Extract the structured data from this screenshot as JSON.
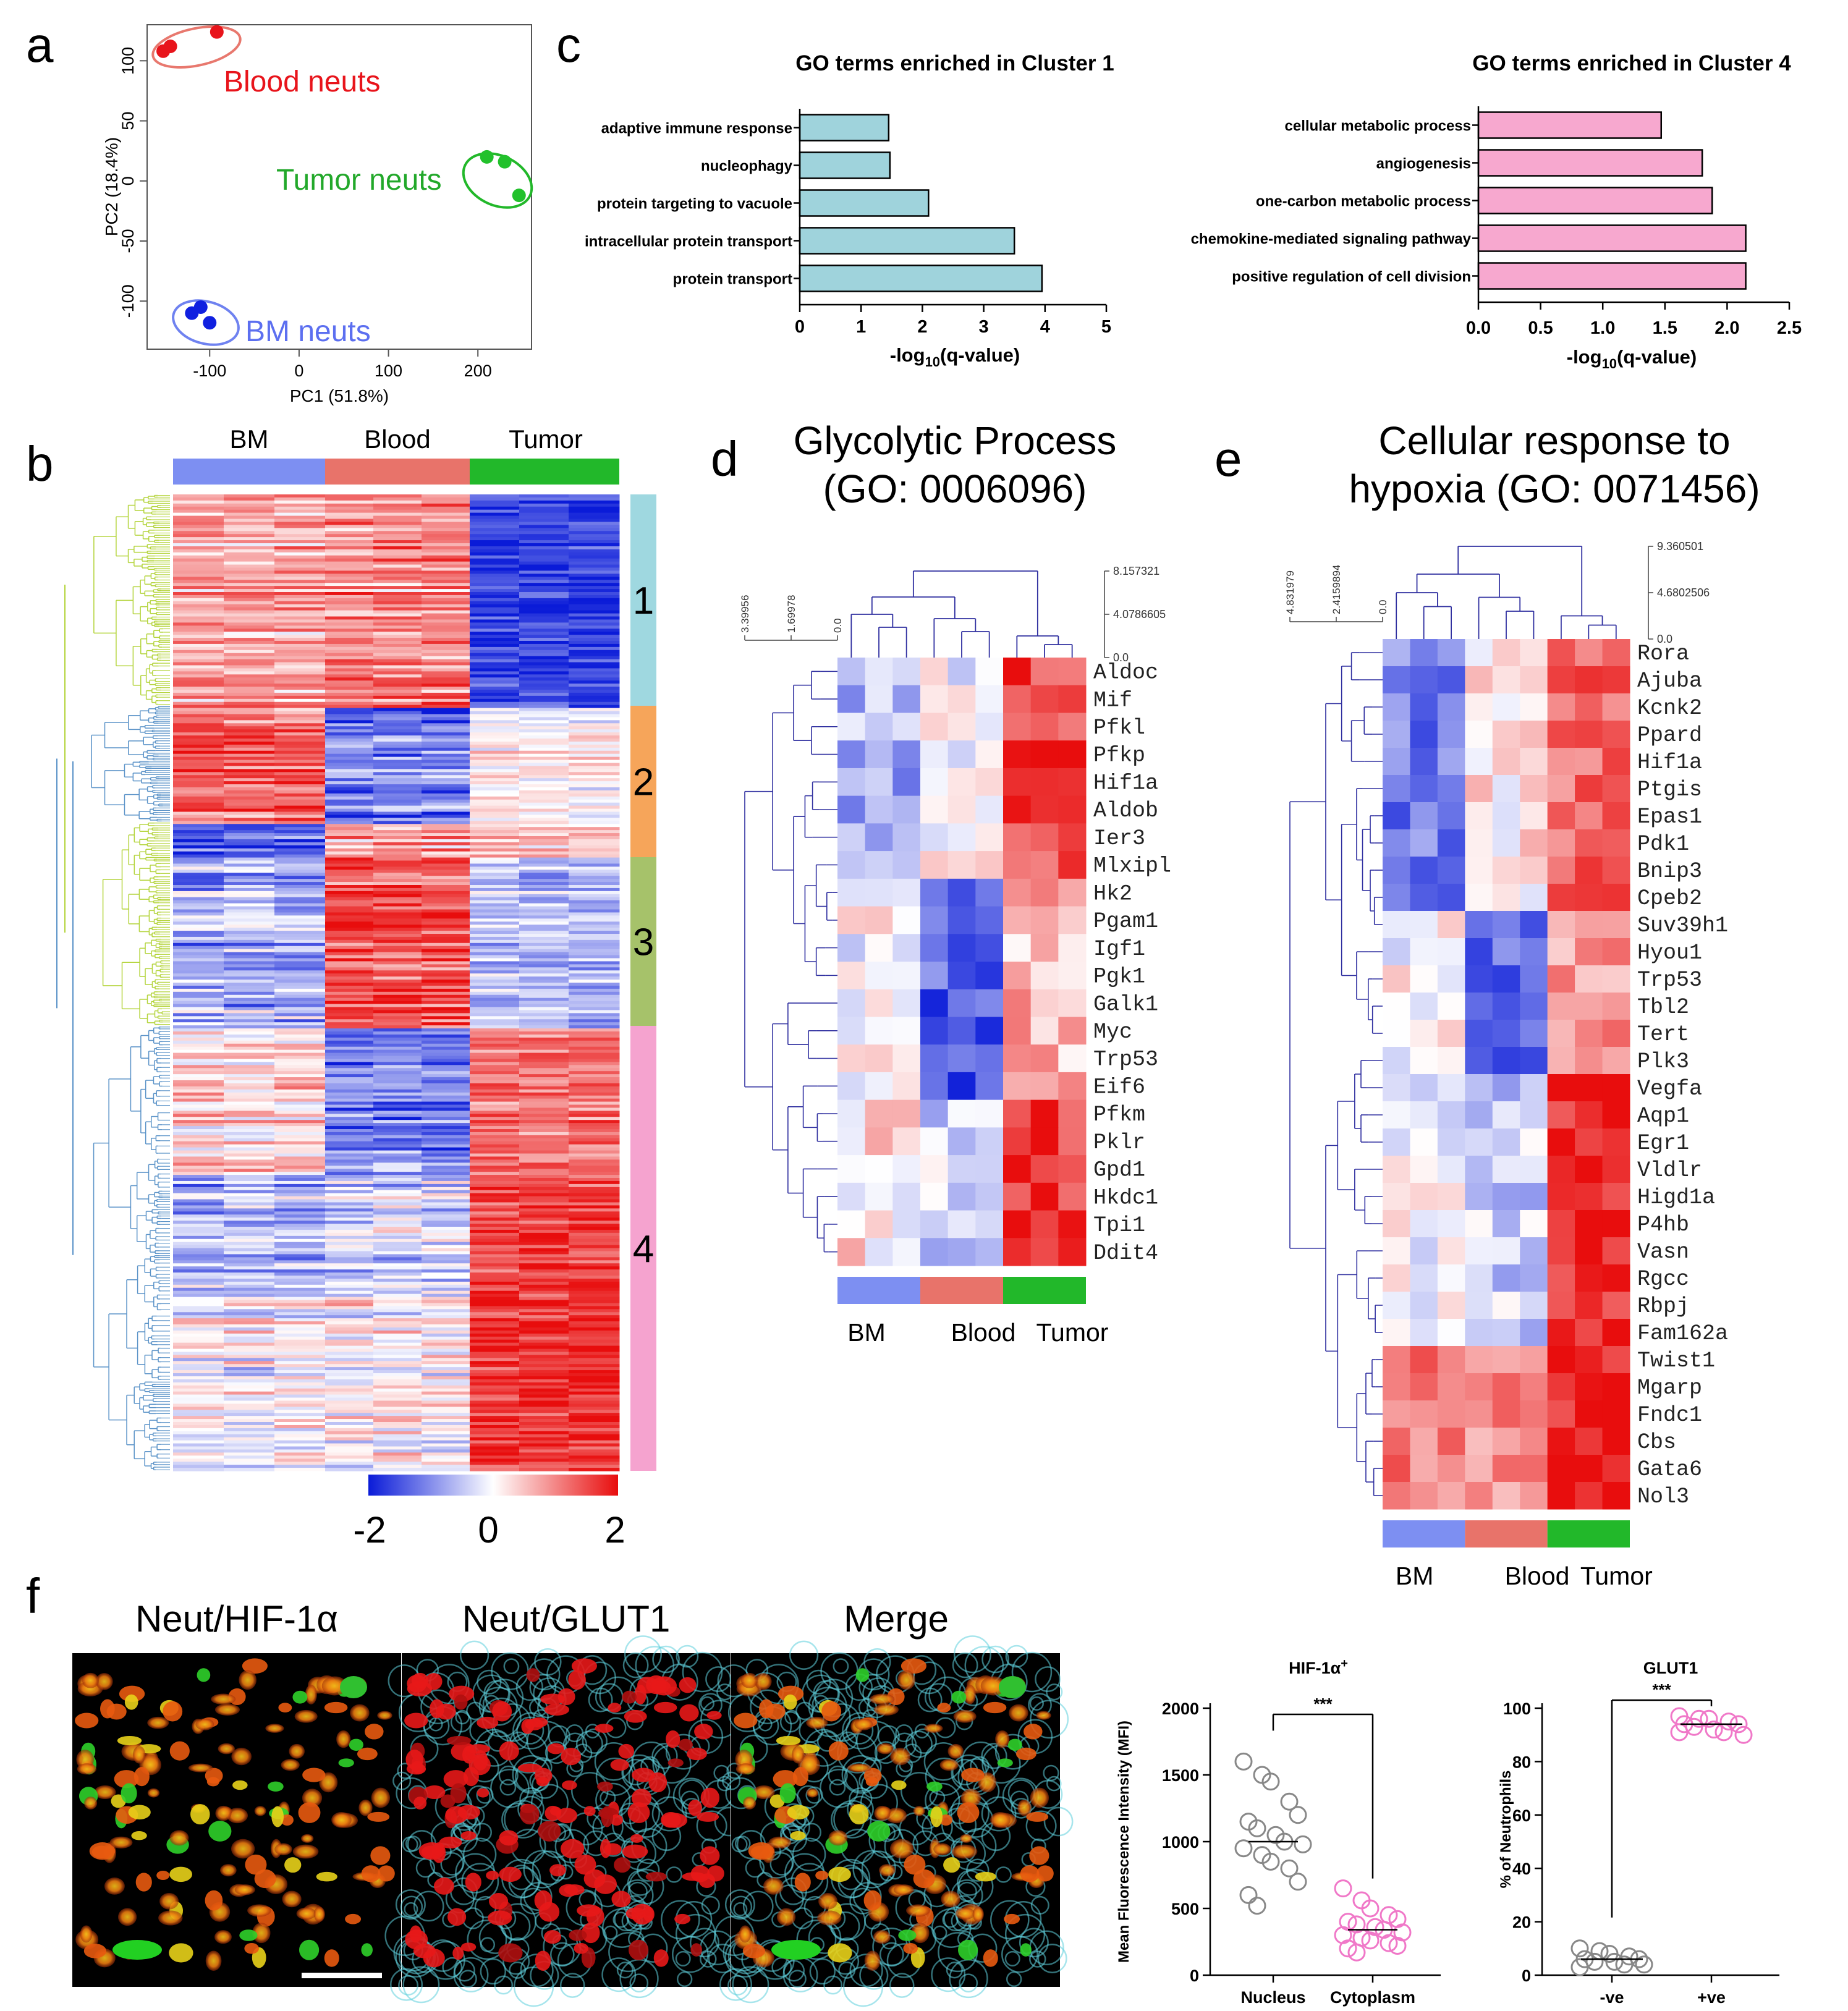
{
  "panel_labels": {
    "a": "a",
    "b": "b",
    "c": "c",
    "d": "d",
    "e": "e",
    "f": "f"
  },
  "chart_data": [
    {
      "id": "pca",
      "type": "scatter",
      "title": "",
      "xlabel": "PC1 (51.8%)",
      "ylabel": "PC2 (18.4%)",
      "xlim": [
        -170,
        260
      ],
      "ylim": [
        -140,
        130
      ],
      "xticks": [
        -100,
        0,
        100,
        200
      ],
      "yticks": [
        -100,
        -50,
        0,
        50,
        100
      ],
      "series": [
        {
          "name": "Blood neuts",
          "color": "#e8141b",
          "points": [
            [
              -152,
              108
            ],
            [
              -144,
              112
            ],
            [
              -92,
              124
            ]
          ]
        },
        {
          "name": "Tumor neuts",
          "color": "#22c12c",
          "points": [
            [
              210,
              20
            ],
            [
              230,
              16
            ],
            [
              246,
              -12
            ]
          ]
        },
        {
          "name": "BM neuts",
          "color": "#1020e0",
          "points": [
            [
              -120,
              -110
            ],
            [
              -110,
              -105
            ],
            [
              -100,
              -118
            ]
          ]
        }
      ]
    },
    {
      "id": "go-cluster1",
      "type": "bar",
      "orientation": "horizontal",
      "title": "GO terms enriched in Cluster 1",
      "xlabel_pre": "-log",
      "xlabel_sub": "10",
      "xlabel_post": "(q-value)",
      "xlim": [
        0,
        5
      ],
      "xticks": [
        "0",
        "1",
        "2",
        "3",
        "4",
        "5"
      ],
      "color": "#9fd3dc",
      "categories": [
        "adaptive immune response",
        "nucleophagy",
        "protein targeting to vacuole",
        "intracellular protein transport",
        "protein transport"
      ],
      "values": [
        1.45,
        1.47,
        2.1,
        3.5,
        3.95
      ]
    },
    {
      "id": "go-cluster4",
      "type": "bar",
      "orientation": "horizontal",
      "title": "GO terms enriched in Cluster 4",
      "xlabel_pre": "-log",
      "xlabel_sub": "10",
      "xlabel_post": "(q-value)",
      "xlim": [
        0,
        2.5
      ],
      "xticks": [
        "0.0",
        "0.5",
        "1.0",
        "1.5",
        "2.0",
        "2.5"
      ],
      "color": "#f7a8cf",
      "categories": [
        "cellular metabolic process",
        "angiogenesis",
        "one-carbon metabolic process",
        "chemokine-mediated signaling pathway",
        "positive regulation of cell division"
      ],
      "values": [
        1.47,
        1.8,
        1.88,
        2.15,
        2.15
      ]
    },
    {
      "id": "hif1a-mfi",
      "type": "scatter",
      "title": "HIF-1α",
      "title_sup": "+",
      "ylabel": "Mean Fluorescence Intensity (MFI)",
      "ylim": [
        0,
        2000
      ],
      "yticks": [
        0,
        500,
        1000,
        1500,
        2000
      ],
      "categories": [
        "Nucleus",
        "Cytoplasm"
      ],
      "significance": "***",
      "series": [
        {
          "name": "Nucleus",
          "color": "#888888",
          "mean": 1000,
          "values": [
            1600,
            1500,
            1450,
            1300,
            1200,
            1150,
            1100,
            1050,
            1000,
            980,
            950,
            900,
            850,
            800,
            700,
            600,
            520
          ]
        },
        {
          "name": "Cytoplasm",
          "color": "#f078c8",
          "mean": 340,
          "values": [
            650,
            560,
            500,
            450,
            420,
            400,
            380,
            360,
            340,
            320,
            300,
            280,
            260,
            240,
            220,
            200,
            170
          ]
        }
      ]
    },
    {
      "id": "glut1-pct",
      "type": "scatter",
      "title": "GLUT1",
      "ylabel": "% of Neutrophils",
      "ylim": [
        0,
        100
      ],
      "yticks": [
        0,
        20,
        40,
        60,
        80,
        100
      ],
      "categories": [
        "-ve",
        "+ve"
      ],
      "significance": "***",
      "series": [
        {
          "name": "-ve",
          "color": "#888888",
          "mean": 6,
          "values": [
            10,
            9,
            8,
            7,
            6,
            6,
            5,
            5,
            4,
            4,
            3
          ]
        },
        {
          "name": "+ve",
          "color": "#f078c8",
          "mean": 94,
          "values": [
            97,
            96,
            96,
            95,
            94,
            94,
            93,
            92,
            91,
            90,
            91
          ]
        }
      ]
    }
  ],
  "pca_labels": {
    "blood": "Blood neuts",
    "tumor": "Tumor neuts",
    "bm": "BM neuts"
  },
  "heatmap_b": {
    "groups": [
      "BM",
      "Blood",
      "Tumor"
    ],
    "group_colors": [
      "#7d8ff2",
      "#e8736a",
      "#22b82a"
    ],
    "clusters": [
      {
        "label": "1",
        "color": "#9fd8e0"
      },
      {
        "label": "2",
        "color": "#f6a55a"
      },
      {
        "label": "3",
        "color": "#a6c26a"
      },
      {
        "label": "4",
        "color": "#f5a3cf"
      }
    ],
    "scale_labels": [
      "-2",
      "0",
      "2"
    ]
  },
  "heatmap_d": {
    "title_line1": "Glycolytic Process",
    "title_line2": "(GO: 0006096)",
    "scale_top": [
      "8.157321",
      "4.0786605",
      "0.0"
    ],
    "scale_left": [
      "3.39956",
      "1.69978",
      "0.0"
    ],
    "genes": [
      "Aldoc",
      "Mif",
      "Pfkl",
      "Pfkp",
      "Hif1a",
      "Aldob",
      "Ier3",
      "Mlxipl",
      "Hk2",
      "Pgam1",
      "Igf1",
      "Pgk1",
      "Galk1",
      "Myc",
      "Trp53",
      "Eif6",
      "Pfkm",
      "Pklr",
      "Gpd1",
      "Hkdc1",
      "Tpi1",
      "Ddit4"
    ],
    "group_labels": [
      "BM",
      "Blood",
      "Tumor"
    ]
  },
  "heatmap_e": {
    "title_line1": "Cellular response to",
    "title_line2": "hypoxia (GO: 0071456)",
    "scale_top": [
      "9.360501",
      "4.6802506",
      "0.0"
    ],
    "scale_left": [
      "4.831979",
      "2.4159894",
      "0.0"
    ],
    "genes": [
      "Rora",
      "Ajuba",
      "Kcnk2",
      "Ppard",
      "Hif1a",
      "Ptgis",
      "Epas1",
      "Pdk1",
      "Bnip3",
      "Cpeb2",
      "Suv39h1",
      "Hyou1",
      "Trp53",
      "Tbl2",
      "Tert",
      "Plk3",
      "Vegfa",
      "Aqp1",
      "Egr1",
      "Vldlr",
      "Higd1a",
      "P4hb",
      "Vasn",
      "Rgcc",
      "Rbpj",
      "Fam162a",
      "Twist1",
      "Mgarp",
      "Fndc1",
      "Cbs",
      "Gata6",
      "Nol3"
    ],
    "group_labels": [
      "BM",
      "Blood",
      "Tumor"
    ]
  },
  "micrographs": {
    "titles": [
      "Neut/HIF-1α",
      "Neut/GLUT1",
      "Merge"
    ]
  }
}
